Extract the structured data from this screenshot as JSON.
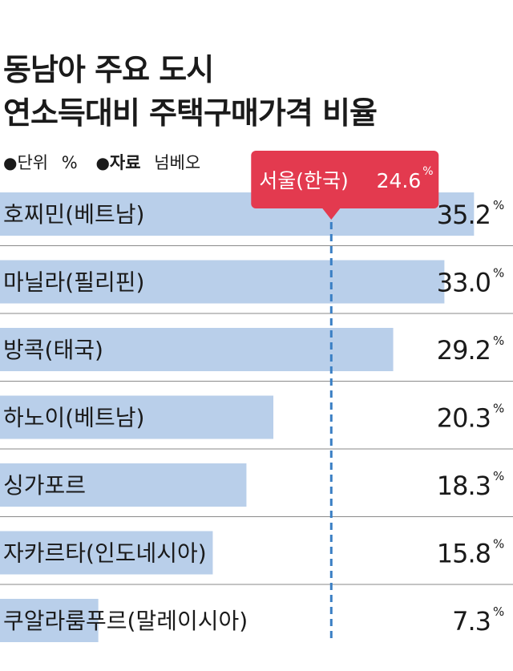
{
  "title_line1": "동남아 주요 도시",
  "title_line2": "연소득대비 주택구매가격 비율",
  "meta": {
    "bullet": "●",
    "unit_label": "단위",
    "unit": "%",
    "source_label": "자료",
    "source": "넘베오"
  },
  "colors": {
    "bar": "#b9cfea",
    "reference_line": "#3a7fc4",
    "callout": "#e33a4f"
  },
  "chart_data": {
    "type": "bar",
    "orientation": "horizontal",
    "title": "동남아 주요 도시 연소득대비 주택구매가격 비율",
    "xlabel": "",
    "ylabel": "",
    "unit": "%",
    "categories": [
      "호찌민(베트남)",
      "마닐라(필리핀)",
      "방콕(태국)",
      "하노이(베트남)",
      "싱가포르",
      "자카르타(인도네시아)",
      "쿠알라룸푸르(말레이시아)"
    ],
    "values": [
      35.2,
      33.0,
      29.2,
      20.3,
      18.3,
      15.8,
      7.3
    ],
    "value_labels": [
      "35.2",
      "33.0",
      "29.2",
      "20.3",
      "18.3",
      "15.8",
      "7.3"
    ],
    "xlim": [
      0,
      38
    ],
    "grid": false,
    "reference": {
      "label": "서울(한국)",
      "value": 24.6,
      "value_label": "24.6"
    }
  }
}
